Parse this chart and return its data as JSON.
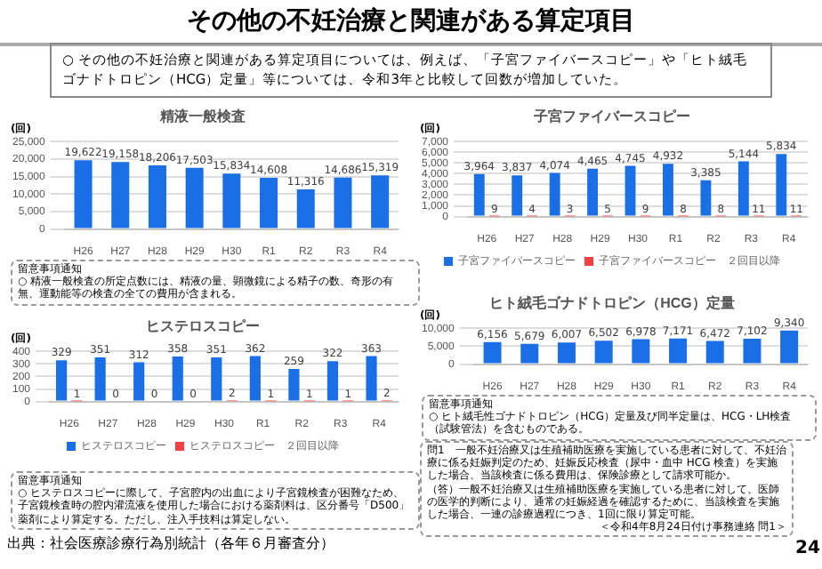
{
  "chart_data": [
    {
      "type": "other",
      "title": "その他の不妊治療と関連がある算定項目",
      "annotations": [
        "○ その他の不妊治療と関連がある算定項目については、例えば、「子宮ファイバースコピー」や「ヒト絨毛ゴナドトロピン（HCG）定量」等については、令和3年と比較して回数が増加していた。",
        "問1　一般不妊治療又は生殖補助医療を実施している患者に対して、不妊治療に係る妊娠判定のため、妊娠反応検査（尿中・血中 HCG 検査）を実施した場合、当該検査に係る費用は、保険診療として請求可能か。",
        "（答）一般不妊治療又は生殖補助医療を実施している患者に対して、医師の医学的判断により、通常の妊娠経過を確認するために、当該検査を実施した場合、一連の診療過程につき、1回に限り算定可能。",
        "＜令和4年8月24日付け事務連絡 問1＞",
        "出典：社会医療診療行為別統計（各年６月審査分）",
        "24"
      ]
    },
    {
      "type": "bar",
      "title": "精液一般検査",
      "ylabel": "(回)",
      "categories": [
        "H26",
        "H27",
        "H28",
        "H29",
        "H30",
        "R1",
        "R2",
        "R3",
        "R4"
      ],
      "values": [
        19622,
        19158,
        18206,
        17503,
        15834,
        14608,
        11316,
        14686,
        15319
      ],
      "value_labels": [
        "19,622",
        "19,158",
        "18,206",
        "17,503",
        "15,834",
        "14,608",
        "11,316",
        "14,686",
        "15,319"
      ],
      "color": "#1a6ee6",
      "ylim": [
        0,
        25000
      ],
      "yticks": [
        0,
        {
          "value": 5000,
          "label": "5,000"
        },
        {
          "value": 10000,
          "label": "10,000"
        },
        {
          "value": 15000,
          "label": "15,000"
        },
        {
          "value": 20000,
          "label": "20,000"
        },
        {
          "value": 25000,
          "label": "25,000"
        }
      ],
      "grid": "y",
      "annotations": [
        "留意事項通知\n○ 精液一般検査の所定点数には、精液の量、顕微鏡による精子の数、奇形の有無、運動能等の検査の全ての費用が含まれる。"
      ]
    },
    {
      "type": "bar",
      "title": "子宮ファイバースコピー",
      "ylabel": "(回)",
      "categories": [
        "H26",
        "H27",
        "H28",
        "H29",
        "H30",
        "R1",
        "R2",
        "R3",
        "R4"
      ],
      "series": [
        {
          "name": "子宮ファイバースコピー",
          "color": "#1a6ee6",
          "values": [
            3964,
            3837,
            4074,
            4465,
            4745,
            4932,
            3385,
            5144,
            5834
          ],
          "value_labels": [
            "3,964",
            "3,837",
            "4,074",
            "4,465",
            "4,745",
            "4,932",
            "3,385",
            "5,144",
            "5,834"
          ]
        },
        {
          "name": "子宮ファイバースコピー　２回目以降",
          "color": "#ff4040",
          "values": [
            9,
            4,
            3,
            5,
            9,
            8,
            8,
            11,
            11
          ],
          "value_labels": [
            "9",
            "4",
            "3",
            "5",
            "9",
            "8",
            "8",
            "11",
            "11"
          ]
        }
      ],
      "ylim": [
        0,
        7000
      ],
      "yticks": [
        0,
        {
          "value": 1000,
          "label": "1,000"
        },
        {
          "value": 2000,
          "label": "2,000"
        },
        {
          "value": 3000,
          "label": "3,000"
        },
        {
          "value": 4000,
          "label": "4,000"
        },
        {
          "value": 5000,
          "label": "5,000"
        },
        {
          "value": 6000,
          "label": "6,000"
        },
        {
          "value": 7000,
          "label": "7,000"
        }
      ],
      "grid": "y",
      "legend": "bottom"
    },
    {
      "type": "bar",
      "title": "ヒステロスコピー",
      "ylabel": "(回)",
      "categories": [
        "H26",
        "H27",
        "H28",
        "H29",
        "H30",
        "R1",
        "R2",
        "R3",
        "R4"
      ],
      "series": [
        {
          "name": "ヒステロスコピー",
          "color": "#1a6ee6",
          "values": [
            329,
            351,
            312,
            358,
            351,
            362,
            259,
            322,
            363
          ],
          "value_labels": [
            "329",
            "351",
            "312",
            "358",
            "351",
            "362",
            "259",
            "322",
            "363"
          ]
        },
        {
          "name": "ヒステロスコピー　２回目以降",
          "color": "#ff4040",
          "values": [
            1,
            0,
            0,
            0,
            2,
            1,
            1,
            1,
            2
          ],
          "value_labels": [
            "1",
            "0",
            "0",
            "0",
            "2",
            "1",
            "1",
            "1",
            "2"
          ]
        }
      ],
      "ylim": [
        0,
        400
      ],
      "yticks": [
        0,
        100,
        200,
        300,
        400
      ],
      "grid": "y",
      "legend": "bottom",
      "annotations": [
        "留意事項通知\n○ ヒステロスコピーに際して、子宮腔内の出血により子宮鏡検査が困難なため、子宮鏡検査時の腔内灌流液を使用した場合における薬剤料は、区分番号「D500」薬剤により算定する。ただし、注入手技料は算定しない。"
      ]
    },
    {
      "type": "bar",
      "title": "ヒト絨毛ゴナドトロピン（HCG）定量",
      "ylabel": "(回)",
      "categories": [
        "H26",
        "H27",
        "H28",
        "H29",
        "H30",
        "R1",
        "R2",
        "R3",
        "R4"
      ],
      "values": [
        6156,
        5679,
        6007,
        6502,
        6978,
        7171,
        6472,
        7102,
        9340
      ],
      "value_labels": [
        "6,156",
        "5,679",
        "6,007",
        "6,502",
        "6,978",
        "7,171",
        "6,472",
        "7,102",
        "9,340"
      ],
      "color": "#1a6ee6",
      "ylim": [
        0,
        10000
      ],
      "yticks": [
        0,
        {
          "value": 5000,
          "label": "5,000"
        },
        {
          "value": 10000,
          "label": "10,000"
        }
      ],
      "grid": "y",
      "annotations": [
        "留意事項通知\n○ ヒト絨毛性ゴナドトロピン（HCG）定量及び同半定量は、HCG・LH検査（試験管法）を含むものである。"
      ]
    }
  ]
}
